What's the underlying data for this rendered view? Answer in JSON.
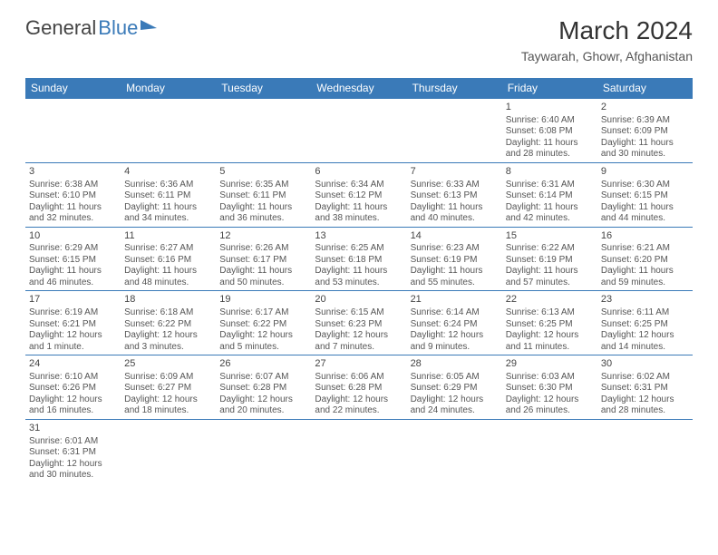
{
  "brand": {
    "part1": "General",
    "part2": "Blue"
  },
  "title": {
    "month": "March 2024",
    "location": "Taywarah, Ghowr, Afghanistan"
  },
  "style": {
    "accent_color": "#3a7ab8",
    "bg_color": "#ffffff",
    "title_fontsize": 28,
    "header_fontsize": 12,
    "cell_fontsize": 10,
    "text_color": "#555"
  },
  "calendar": {
    "type": "table",
    "columns": [
      "Sunday",
      "Monday",
      "Tuesday",
      "Wednesday",
      "Thursday",
      "Friday",
      "Saturday"
    ],
    "weeks": [
      [
        null,
        null,
        null,
        null,
        null,
        {
          "d": "1",
          "sr": "6:40 AM",
          "ss": "6:08 PM",
          "dl": "11 hours and 28 minutes."
        },
        {
          "d": "2",
          "sr": "6:39 AM",
          "ss": "6:09 PM",
          "dl": "11 hours and 30 minutes."
        }
      ],
      [
        {
          "d": "3",
          "sr": "6:38 AM",
          "ss": "6:10 PM",
          "dl": "11 hours and 32 minutes."
        },
        {
          "d": "4",
          "sr": "6:36 AM",
          "ss": "6:11 PM",
          "dl": "11 hours and 34 minutes."
        },
        {
          "d": "5",
          "sr": "6:35 AM",
          "ss": "6:11 PM",
          "dl": "11 hours and 36 minutes."
        },
        {
          "d": "6",
          "sr": "6:34 AM",
          "ss": "6:12 PM",
          "dl": "11 hours and 38 minutes."
        },
        {
          "d": "7",
          "sr": "6:33 AM",
          "ss": "6:13 PM",
          "dl": "11 hours and 40 minutes."
        },
        {
          "d": "8",
          "sr": "6:31 AM",
          "ss": "6:14 PM",
          "dl": "11 hours and 42 minutes."
        },
        {
          "d": "9",
          "sr": "6:30 AM",
          "ss": "6:15 PM",
          "dl": "11 hours and 44 minutes."
        }
      ],
      [
        {
          "d": "10",
          "sr": "6:29 AM",
          "ss": "6:15 PM",
          "dl": "11 hours and 46 minutes."
        },
        {
          "d": "11",
          "sr": "6:27 AM",
          "ss": "6:16 PM",
          "dl": "11 hours and 48 minutes."
        },
        {
          "d": "12",
          "sr": "6:26 AM",
          "ss": "6:17 PM",
          "dl": "11 hours and 50 minutes."
        },
        {
          "d": "13",
          "sr": "6:25 AM",
          "ss": "6:18 PM",
          "dl": "11 hours and 53 minutes."
        },
        {
          "d": "14",
          "sr": "6:23 AM",
          "ss": "6:19 PM",
          "dl": "11 hours and 55 minutes."
        },
        {
          "d": "15",
          "sr": "6:22 AM",
          "ss": "6:19 PM",
          "dl": "11 hours and 57 minutes."
        },
        {
          "d": "16",
          "sr": "6:21 AM",
          "ss": "6:20 PM",
          "dl": "11 hours and 59 minutes."
        }
      ],
      [
        {
          "d": "17",
          "sr": "6:19 AM",
          "ss": "6:21 PM",
          "dl": "12 hours and 1 minute."
        },
        {
          "d": "18",
          "sr": "6:18 AM",
          "ss": "6:22 PM",
          "dl": "12 hours and 3 minutes."
        },
        {
          "d": "19",
          "sr": "6:17 AM",
          "ss": "6:22 PM",
          "dl": "12 hours and 5 minutes."
        },
        {
          "d": "20",
          "sr": "6:15 AM",
          "ss": "6:23 PM",
          "dl": "12 hours and 7 minutes."
        },
        {
          "d": "21",
          "sr": "6:14 AM",
          "ss": "6:24 PM",
          "dl": "12 hours and 9 minutes."
        },
        {
          "d": "22",
          "sr": "6:13 AM",
          "ss": "6:25 PM",
          "dl": "12 hours and 11 minutes."
        },
        {
          "d": "23",
          "sr": "6:11 AM",
          "ss": "6:25 PM",
          "dl": "12 hours and 14 minutes."
        }
      ],
      [
        {
          "d": "24",
          "sr": "6:10 AM",
          "ss": "6:26 PM",
          "dl": "12 hours and 16 minutes."
        },
        {
          "d": "25",
          "sr": "6:09 AM",
          "ss": "6:27 PM",
          "dl": "12 hours and 18 minutes."
        },
        {
          "d": "26",
          "sr": "6:07 AM",
          "ss": "6:28 PM",
          "dl": "12 hours and 20 minutes."
        },
        {
          "d": "27",
          "sr": "6:06 AM",
          "ss": "6:28 PM",
          "dl": "12 hours and 22 minutes."
        },
        {
          "d": "28",
          "sr": "6:05 AM",
          "ss": "6:29 PM",
          "dl": "12 hours and 24 minutes."
        },
        {
          "d": "29",
          "sr": "6:03 AM",
          "ss": "6:30 PM",
          "dl": "12 hours and 26 minutes."
        },
        {
          "d": "30",
          "sr": "6:02 AM",
          "ss": "6:31 PM",
          "dl": "12 hours and 28 minutes."
        }
      ],
      [
        {
          "d": "31",
          "sr": "6:01 AM",
          "ss": "6:31 PM",
          "dl": "12 hours and 30 minutes."
        },
        null,
        null,
        null,
        null,
        null,
        null
      ]
    ],
    "labels": {
      "sunrise": "Sunrise: ",
      "sunset": "Sunset: ",
      "daylight": "Daylight: "
    }
  }
}
